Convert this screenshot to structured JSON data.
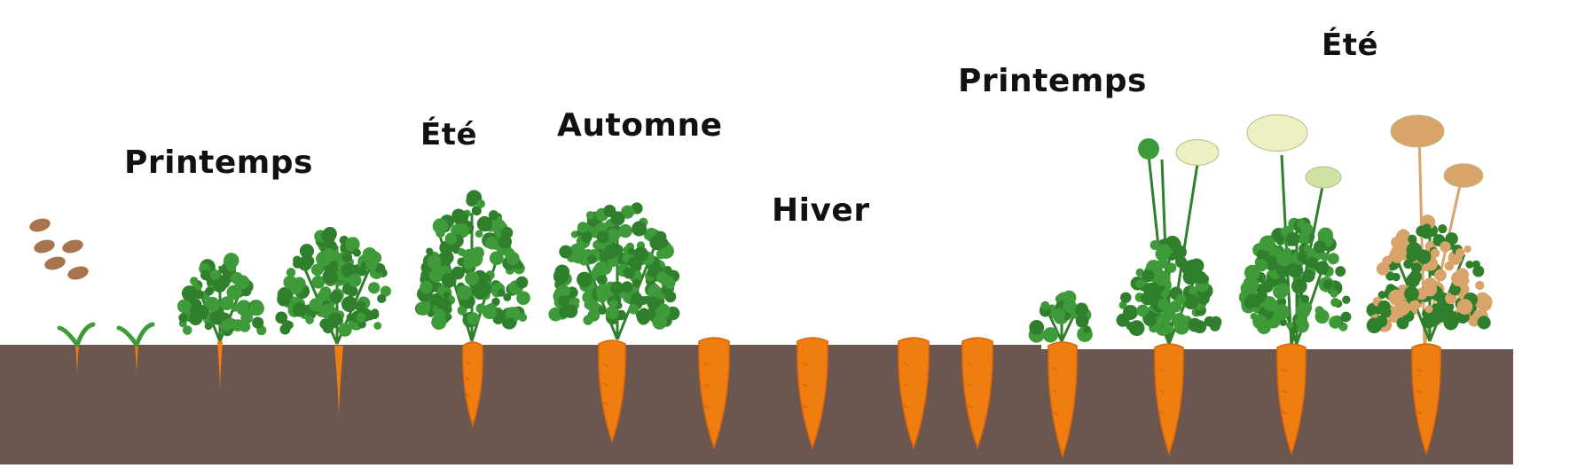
{
  "seasons": {
    "printemps_1": "Printemps",
    "ete_1": "Été",
    "automne": "Automne",
    "hiver": "Hiver",
    "printemps_2": "Printemps",
    "ete_2": "Été"
  },
  "colors": {
    "soil": "#6b5750",
    "carrot": "#f07d10",
    "carrot_dark": "#d8650a",
    "leaf": "#3f9a3a",
    "leaf_dark": "#2f7f2c",
    "seed": "#a7744e",
    "flower_cream": "#eef0c2",
    "dry_plant": "#d8a46a"
  }
}
